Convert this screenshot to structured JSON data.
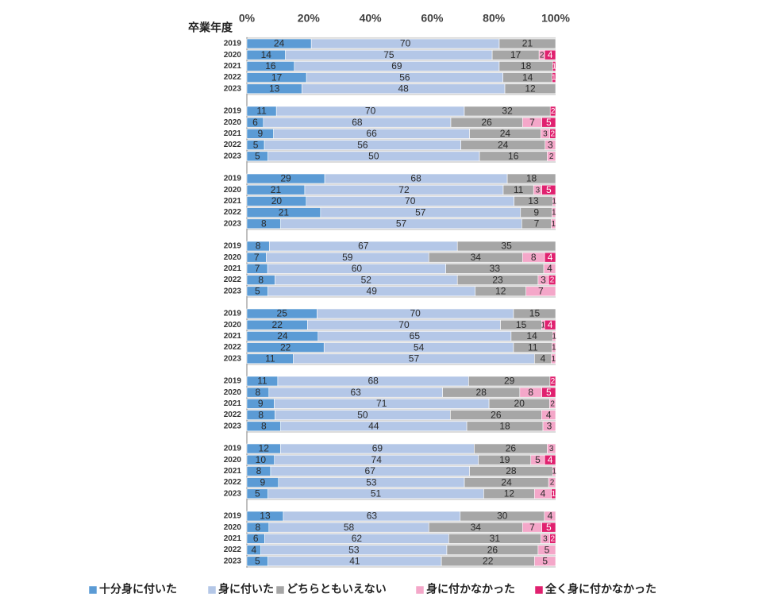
{
  "colors": {
    "full": "#5b9bd5",
    "some": "#b4c7e7",
    "neutral": "#a6a6a6",
    "notmuch": "#f4a7c9",
    "none": "#e0216f",
    "group_bg": "#ffffff",
    "text_dark": "#404040"
  },
  "chart_data": {
    "type": "bar",
    "orientation": "horizontal",
    "stacked": "percent",
    "row_axis_label": "卒業年度",
    "xlim": [
      0,
      100
    ],
    "x_ticks": [
      "0%",
      "20%",
      "40%",
      "60%",
      "80%",
      "100%"
    ],
    "grid": false,
    "legend_position": "bottom",
    "series": [
      {
        "name": "十分身に付いた",
        "key": "full"
      },
      {
        "name": "身に付いた",
        "key": "some"
      },
      {
        "name": "どちらともいえない",
        "key": "neutral"
      },
      {
        "name": "身に付かなかった",
        "key": "notmuch"
      },
      {
        "name": "全く身に付かなかった",
        "key": "none"
      }
    ],
    "groups": [
      {
        "rows": [
          {
            "year": "2019",
            "values": [
              24,
              70,
              21,
              0,
              0
            ]
          },
          {
            "year": "2020",
            "values": [
              14,
              75,
              17,
              2,
              4
            ]
          },
          {
            "year": "2021",
            "values": [
              16,
              69,
              18,
              0,
              1
            ]
          },
          {
            "year": "2022",
            "values": [
              17,
              56,
              14,
              0,
              1
            ]
          },
          {
            "year": "2023",
            "values": [
              13,
              48,
              12,
              0,
              0
            ]
          }
        ]
      },
      {
        "rows": [
          {
            "year": "2019",
            "values": [
              11,
              70,
              32,
              0,
              2
            ]
          },
          {
            "year": "2020",
            "values": [
              6,
              68,
              26,
              7,
              5
            ]
          },
          {
            "year": "2021",
            "values": [
              9,
              66,
              24,
              3,
              2
            ]
          },
          {
            "year": "2022",
            "values": [
              5,
              56,
              24,
              3,
              0
            ]
          },
          {
            "year": "2023",
            "values": [
              5,
              50,
              16,
              2,
              0
            ]
          }
        ]
      },
      {
        "rows": [
          {
            "year": "2019",
            "values": [
              29,
              68,
              18,
              0,
              0
            ]
          },
          {
            "year": "2020",
            "values": [
              21,
              72,
              11,
              3,
              5
            ]
          },
          {
            "year": "2021",
            "values": [
              20,
              70,
              13,
              1,
              0
            ]
          },
          {
            "year": "2022",
            "values": [
              21,
              57,
              9,
              1,
              0
            ]
          },
          {
            "year": "2023",
            "values": [
              8,
              57,
              7,
              1,
              0
            ]
          }
        ]
      },
      {
        "rows": [
          {
            "year": "2019",
            "values": [
              8,
              67,
              35,
              0,
              0
            ]
          },
          {
            "year": "2020",
            "values": [
              7,
              59,
              34,
              8,
              4
            ]
          },
          {
            "year": "2021",
            "values": [
              7,
              60,
              33,
              4,
              0
            ]
          },
          {
            "year": "2022",
            "values": [
              8,
              52,
              23,
              3,
              2
            ]
          },
          {
            "year": "2023",
            "values": [
              5,
              49,
              12,
              7,
              0
            ]
          }
        ]
      },
      {
        "rows": [
          {
            "year": "2019",
            "values": [
              25,
              70,
              15,
              0,
              0
            ]
          },
          {
            "year": "2020",
            "values": [
              22,
              70,
              15,
              1,
              4
            ]
          },
          {
            "year": "2021",
            "values": [
              24,
              65,
              14,
              1,
              0
            ]
          },
          {
            "year": "2022",
            "values": [
              22,
              54,
              11,
              1,
              0
            ]
          },
          {
            "year": "2023",
            "values": [
              11,
              57,
              4,
              1,
              0
            ]
          }
        ]
      },
      {
        "rows": [
          {
            "year": "2019",
            "values": [
              11,
              68,
              29,
              0,
              2
            ]
          },
          {
            "year": "2020",
            "values": [
              8,
              63,
              28,
              8,
              5
            ]
          },
          {
            "year": "2021",
            "values": [
              9,
              71,
              20,
              2,
              0
            ]
          },
          {
            "year": "2022",
            "values": [
              8,
              50,
              26,
              4,
              0
            ]
          },
          {
            "year": "2023",
            "values": [
              8,
              44,
              18,
              3,
              0
            ]
          }
        ]
      },
      {
        "rows": [
          {
            "year": "2019",
            "values": [
              12,
              69,
              26,
              3,
              0
            ]
          },
          {
            "year": "2020",
            "values": [
              10,
              74,
              19,
              5,
              4
            ]
          },
          {
            "year": "2021",
            "values": [
              8,
              67,
              28,
              1,
              0
            ]
          },
          {
            "year": "2022",
            "values": [
              9,
              53,
              24,
              2,
              0
            ]
          },
          {
            "year": "2023",
            "values": [
              5,
              51,
              12,
              4,
              1
            ]
          }
        ]
      },
      {
        "rows": [
          {
            "year": "2019",
            "values": [
              13,
              63,
              30,
              4,
              0
            ]
          },
          {
            "year": "2020",
            "values": [
              8,
              58,
              34,
              7,
              5
            ]
          },
          {
            "year": "2021",
            "values": [
              6,
              62,
              31,
              3,
              2
            ]
          },
          {
            "year": "2022",
            "values": [
              4,
              53,
              26,
              5,
              0
            ]
          },
          {
            "year": "2023",
            "values": [
              5,
              41,
              22,
              5,
              0
            ]
          }
        ]
      }
    ]
  }
}
